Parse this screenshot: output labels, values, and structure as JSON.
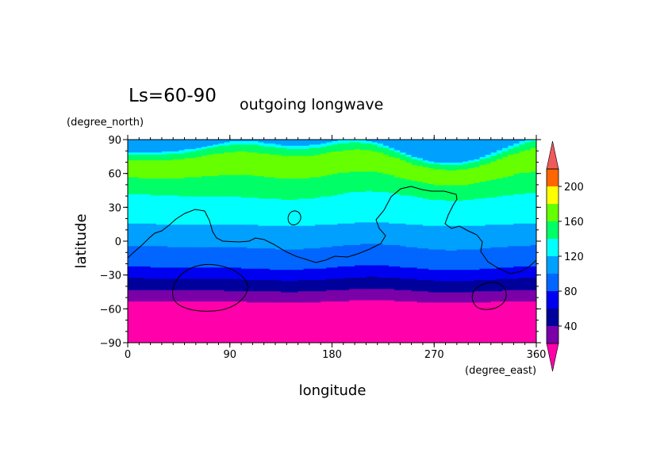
{
  "chart_data": {
    "type": "heatmap",
    "title": "Ls=60-90",
    "subtitle": "outgoing longwave",
    "xlabel": "longitude",
    "ylabel": "latitude",
    "x_unit": "(degree_east)",
    "y_unit": "(degree_north)",
    "xlim": [
      0,
      360
    ],
    "ylim": [
      -90,
      90
    ],
    "x_ticks": [
      "0",
      "90",
      "180",
      "270",
      "360"
    ],
    "y_ticks": [
      "90",
      "60",
      "30",
      "0",
      "−30",
      "−60",
      "−90"
    ],
    "colorbar": {
      "tick_labels": [
        "40",
        "80",
        "120",
        "160",
        "200"
      ],
      "tick_values": [
        40,
        80,
        120,
        160,
        200
      ],
      "levels": [
        20,
        40,
        60,
        80,
        100,
        120,
        140,
        160,
        180,
        200,
        220
      ],
      "colors": [
        "#7a00a8",
        "#00009a",
        "#0000f0",
        "#0066ff",
        "#00a0ff",
        "#00ffff",
        "#00ff66",
        "#66ff00",
        "#ffff00",
        "#ff6600",
        "#f05a5a"
      ],
      "under_color": "#ff00aa",
      "over_color": "#f05a5a",
      "extend": "both"
    },
    "field_profile": {
      "description": "zonal band structure of the filled contours (latitude, value)",
      "lat": [
        -90,
        -80,
        -70,
        -60,
        -55,
        -50,
        -45,
        -40,
        -35,
        -30,
        -20,
        -10,
        0,
        10,
        20,
        30,
        40,
        50,
        60,
        70,
        80,
        85,
        90
      ],
      "value": [
        10,
        10,
        10,
        10,
        15,
        30,
        38,
        45,
        55,
        70,
        85,
        95,
        105,
        115,
        125,
        135,
        140,
        150,
        165,
        175,
        140,
        100,
        100
      ]
    },
    "colors": {
      "contour_line": "#000000",
      "frame": "#000000"
    }
  }
}
